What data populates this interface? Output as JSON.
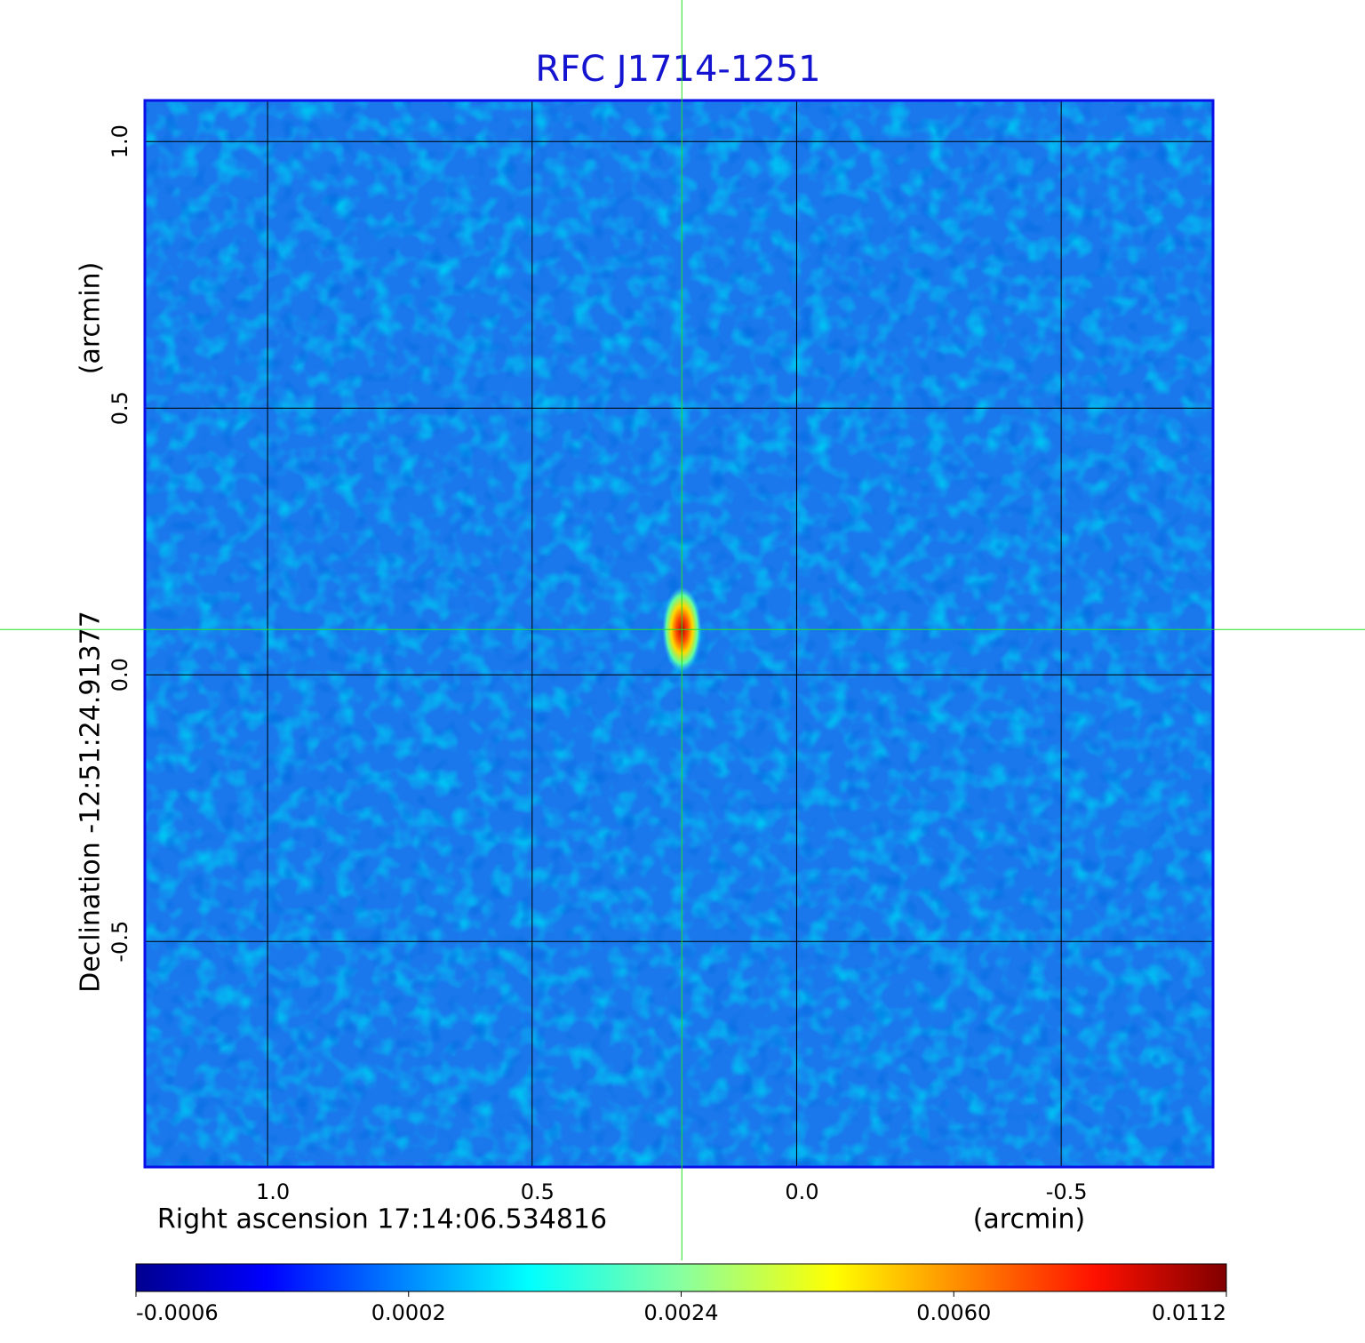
{
  "chart_data": {
    "type": "image",
    "title": "RFC J1714-1251",
    "x_label": "Right ascension  17:14:06.534816",
    "x_unit": "(arcmin)",
    "y_label": "Declination  -12:51:24.91377",
    "y_unit": "(arcmin)",
    "xlim": [
      1.232,
      -0.787
    ],
    "ylim": [
      -0.923,
      1.077
    ],
    "xticks": [
      {
        "value": 1.0,
        "label": "1.0"
      },
      {
        "value": 0.5,
        "label": "0.5"
      },
      {
        "value": 0.0,
        "label": "0.0"
      },
      {
        "value": -0.5,
        "label": "-0.5"
      }
    ],
    "yticks": [
      {
        "value": 1.0,
        "label": "1.0"
      },
      {
        "value": 0.5,
        "label": "0.5"
      },
      {
        "value": 0.0,
        "label": "0.0"
      },
      {
        "value": -0.5,
        "label": "-0.5"
      }
    ],
    "grid": true,
    "source": {
      "x": 0.217,
      "y": 0.085
    },
    "colorbar_ticks": [
      -0.0006,
      0.0002,
      0.0024,
      {
        "value": 0.006,
        "label": "0.0060"
      },
      0.0112
    ]
  }
}
